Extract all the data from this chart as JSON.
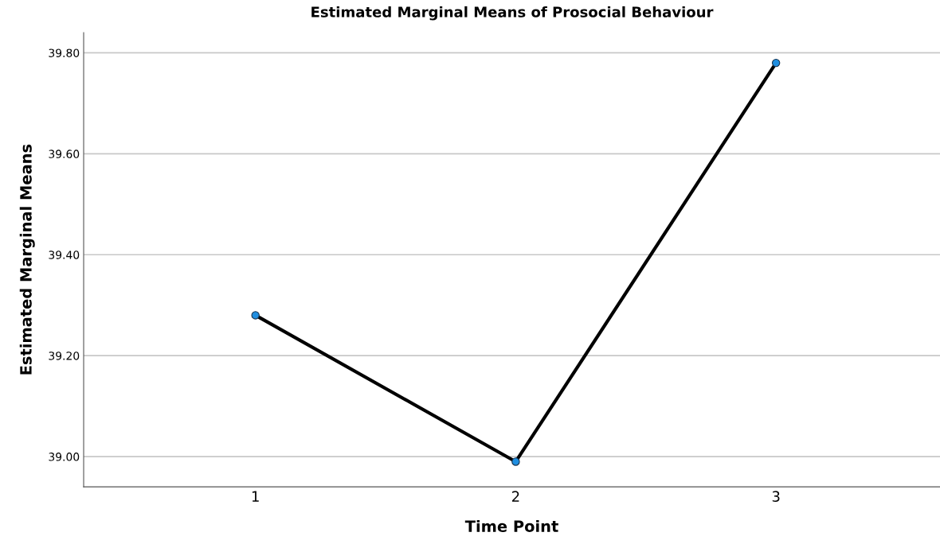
{
  "chart_data": {
    "type": "line",
    "title": "Estimated Marginal Means of Prosocial Behaviour",
    "xlabel": "Time Point",
    "ylabel": "Estimated Marginal Means",
    "categories": [
      "1",
      "2",
      "3"
    ],
    "series": [
      {
        "color": "#000000",
        "values": [
          39.28,
          38.99,
          39.78
        ]
      }
    ],
    "ylim": [
      38.94,
      39.84
    ],
    "yticks": [
      {
        "value": 39.0,
        "label": "39.00"
      },
      {
        "value": 39.2,
        "label": "39.20"
      },
      {
        "value": 39.4,
        "label": "39.40"
      },
      {
        "value": 39.6,
        "label": "39.60"
      },
      {
        "value": 39.8,
        "label": "39.80"
      }
    ],
    "grid": "y",
    "marker": "circle",
    "line_style": "solid"
  }
}
